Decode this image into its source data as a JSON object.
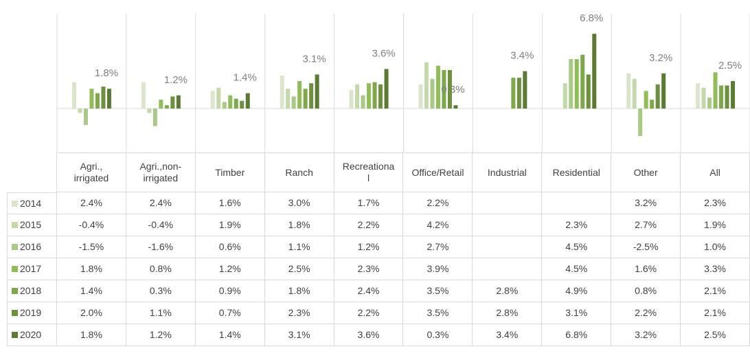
{
  "chart_data": {
    "type": "bar",
    "categories": [
      "Agri., irrigated",
      "Agri.,non-irrigated",
      "Timber",
      "Ranch",
      "Recreational",
      "Office/Retail",
      "Industrial",
      "Residential",
      "Other",
      "All"
    ],
    "series": [
      {
        "name": "2014",
        "color": "#dbe5cc",
        "values": [
          2.4,
          2.4,
          1.6,
          3.0,
          1.7,
          2.2,
          null,
          null,
          3.2,
          2.3
        ],
        "value_labels": [
          "2.4%",
          "2.4%",
          "1.6%",
          "3.0%",
          "1.7%",
          "2.2%",
          null,
          null,
          "3.2%",
          "2.3%"
        ]
      },
      {
        "name": "2015",
        "color": "#c4d8a9",
        "values": [
          -0.4,
          -0.4,
          1.9,
          1.8,
          2.2,
          4.2,
          null,
          2.3,
          2.7,
          1.9
        ],
        "value_labels": [
          "-0.4%",
          "-0.4%",
          "1.9%",
          "1.8%",
          "2.2%",
          "4.2%",
          null,
          "2.3%",
          "2.7%",
          "1.9%"
        ]
      },
      {
        "name": "2016",
        "color": "#a9ca86",
        "values": [
          -1.5,
          -1.6,
          0.6,
          1.1,
          1.2,
          2.7,
          null,
          4.5,
          -2.5,
          1.0
        ],
        "value_labels": [
          "-1.5%",
          "-1.6%",
          "0.6%",
          "1.1%",
          "1.2%",
          "2.7%",
          null,
          "4.5%",
          "-2.5%",
          "1.0%"
        ]
      },
      {
        "name": "2017",
        "color": "#8fbd58",
        "values": [
          1.8,
          0.8,
          1.2,
          2.5,
          2.3,
          3.9,
          null,
          4.5,
          1.6,
          3.3
        ],
        "value_labels": [
          "1.8%",
          "0.8%",
          "1.2%",
          "2.5%",
          "2.3%",
          "3.9%",
          null,
          "4.5%",
          "1.6%",
          "3.3%"
        ]
      },
      {
        "name": "2018",
        "color": "#7ea94a",
        "values": [
          1.4,
          0.3,
          0.9,
          1.8,
          2.4,
          3.5,
          2.8,
          4.9,
          0.8,
          2.1
        ],
        "value_labels": [
          "1.4%",
          "0.3%",
          "0.9%",
          "1.8%",
          "2.4%",
          "3.5%",
          "2.8%",
          "4.9%",
          "0.8%",
          "2.1%"
        ]
      },
      {
        "name": "2019",
        "color": "#6c903d",
        "values": [
          2.0,
          1.1,
          0.7,
          2.3,
          2.2,
          3.5,
          2.8,
          3.1,
          2.2,
          2.1
        ],
        "value_labels": [
          "2.0%",
          "1.1%",
          "0.7%",
          "2.3%",
          "2.2%",
          "3.5%",
          "2.8%",
          "3.1%",
          "2.2%",
          "2.1%"
        ]
      },
      {
        "name": "2020",
        "color": "#5b7b33",
        "values": [
          1.8,
          1.2,
          1.4,
          3.1,
          3.6,
          0.3,
          3.4,
          6.8,
          3.2,
          2.5
        ],
        "value_labels": [
          "1.8%",
          "1.2%",
          "1.4%",
          "3.1%",
          "3.6%",
          "0.3%",
          "3.4%",
          "6.8%",
          "3.2%",
          "2.5%"
        ]
      }
    ],
    "ylim": [
      -4,
      8.5
    ]
  }
}
